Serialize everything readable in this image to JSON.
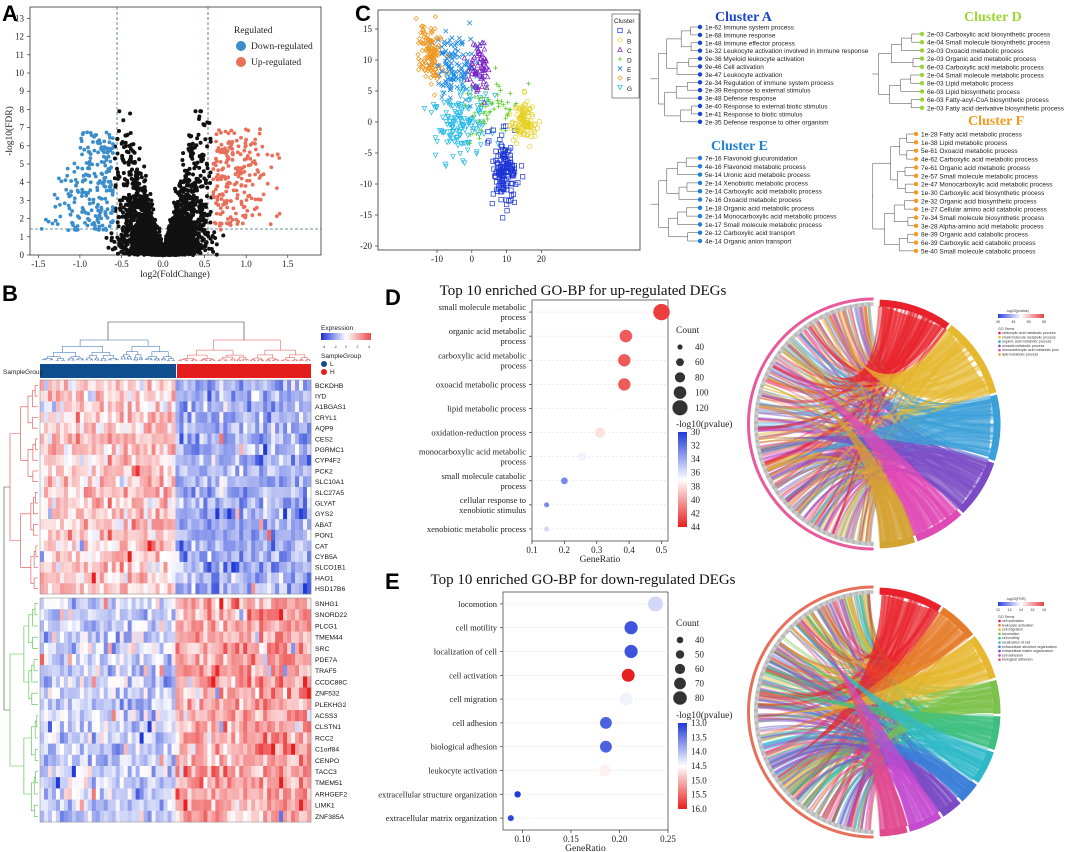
{
  "panels": {
    "a": "A",
    "b": "B",
    "c": "C",
    "d": "D",
    "e": "E"
  },
  "colors": {
    "down": "#3b8ec9",
    "up": "#e8705a",
    "ns": "#111111",
    "lowBlue": "#1f3ad8",
    "highRed": "#e81f1f"
  },
  "volcano": {
    "xlabel": "log2(FoldChange)",
    "ylabel": "-log10(FDR)",
    "xticks": [
      "-1.5",
      "-1.0",
      "-0.5",
      "0.0",
      "0.5",
      "1.0",
      "1.5"
    ],
    "yticks": [
      "0",
      "1",
      "2",
      "3",
      "4",
      "5",
      "6",
      "7",
      "8",
      "9",
      "10",
      "11",
      "12",
      "13"
    ],
    "legend_title": "Regulated",
    "legend_down": "Down-regulated",
    "legend_up": "Up-regulated"
  },
  "heatmap": {
    "expr_title": "Expression",
    "expr_ticks": [
      "-4",
      "-2",
      "0",
      "2",
      "4"
    ],
    "group_title": "SampleGroup",
    "group_l": "L",
    "group_h": "H",
    "row_label": "SampleGroup",
    "genes": [
      "BCKDHB",
      "IYD",
      "A1BGAS1",
      "CRYL1",
      "AQP9",
      "CES2",
      "PGRMC1",
      "CYP4F2",
      "PCK2",
      "SLC10A1",
      "SLC27A5",
      "GLYAT",
      "GYS2",
      "ABAT",
      "PON1",
      "CAT",
      "CYB5A",
      "SLCO1B1",
      "HAO1",
      "HSD17B6",
      "SNHG1",
      "SNORD22",
      "PLCG1",
      "TMEM44",
      "SRC",
      "PDE7A",
      "TRAF5",
      "CCDC88C",
      "ZNF532",
      "PLEKHG2",
      "ACSS3",
      "CLSTN1",
      "RCC2",
      "C1orf84",
      "CENPO",
      "TACC3",
      "TMEM51",
      "ARHGEF2",
      "LIMK1",
      "ZNF385A"
    ]
  },
  "tsne": {
    "xticks": [
      "-10",
      "0",
      "10",
      "20"
    ],
    "yticks": [
      "15",
      "10",
      "5",
      "0",
      "-5",
      "-10",
      "-15",
      "-20"
    ],
    "legend_title": "Cluster",
    "clusters": [
      {
        "name": "A",
        "color": "#1b34d6",
        "symbol": "□"
      },
      {
        "name": "B",
        "color": "#e6d020",
        "symbol": "○"
      },
      {
        "name": "C",
        "color": "#7b22c4",
        "symbol": "△"
      },
      {
        "name": "D",
        "color": "#5ccc2e",
        "symbol": "+"
      },
      {
        "name": "E",
        "color": "#1e88e5",
        "symbol": "×"
      },
      {
        "name": "F",
        "color": "#f0961e",
        "symbol": "◇"
      },
      {
        "name": "G",
        "color": "#22b8e8",
        "symbol": "▽"
      }
    ]
  },
  "trees": [
    {
      "title": "Cluster A",
      "color": "#1a44c9",
      "terms": [
        "1e-62 Immune system process",
        "1e-68 Immune response",
        "1e-48 Immune effector process",
        "1e-32 Leukocyte activation involved in immune response",
        "9e-36 Myeloid leukocyte activation",
        "9e-46 Cell activation",
        "3e-47 Leukocyte activation",
        "2e-34 Regulation of immune system process",
        "2e-39 Response to external stimulus",
        "3e-48 Defense response",
        "3e-40 Response to external biotic stimulus",
        "1e-41 Response to biotic stimulus",
        "2e-35 Defense response to other organism"
      ]
    },
    {
      "title": "Cluster D",
      "color": "#9ad633",
      "terms": [
        "2e-03 Carboxylic acid biosynthetic process",
        "4e-04 Small molecule biosynthetic process",
        "2e-03 Oxoacid metabolic process",
        "2e-03 Organic acid metabolic process",
        "6e-03 Carboxylic acid metabolic process",
        "2e-04 Small molecule metabolic process",
        "8e-03 Lipid metabolic process",
        "6e-03 Lipid biosynthetic process",
        "6e-03 Fatty-acyl-CoA biosynthetic process",
        "2e-03 Fatty acid derivative biosynthetic process"
      ]
    },
    {
      "title": "Cluster E",
      "color": "#1e7fd6",
      "terms": [
        "7e-16 Flavonoid glucuronidation",
        "4e-16 Flavonoid metabolic process",
        "5e-14 Uronic acid metabolic process",
        "2e-14 Xenobiotic metabolic process",
        "2e-14 Carboxylic acid metabolic process",
        "7e-16 Oxoacid metabolic process",
        "1e-18 Organic acid metabolic process",
        "2e-14 Monocarboxylic acid metabolic process",
        "1e-17 Small molecule metabolic process",
        "2e-12 Carboxylic acid transport",
        "4e-14 Organic anion transport"
      ]
    },
    {
      "title": "Cluster F",
      "color": "#f29b1e",
      "terms": [
        "1e-28 Fatty acid metabolic process",
        "1e-38 Lipid metabolic process",
        "5e-61 Oxoacid metabolic process",
        "4e-62 Carboxylic acid metabolic process",
        "7e-61 Organic acid metabolic process",
        "2e-57 Small molecule metabolic process",
        "2e-47 Monocarboxylic acid metabolic process",
        "1e-30 Carboxylic acid biosynthetic process",
        "2e-32 Organic acid biosynthetic process",
        "1e-27 Cellular amino acid catabolic process",
        "7e-34 Small molecule biosynthetic process",
        "3e-28 Alpha-amino acid metabolic process",
        "8e-39 Organic acid catabolic process",
        "6e-39 Carboxylic acid catabolic process",
        "5e-40 Small molecule catabolic process"
      ]
    }
  ],
  "chart_data": [
    {
      "type": "scatter",
      "title": "Top 10 enriched GO-BP for up-regulated DEGs",
      "xlabel": "GeneRatio",
      "xlim": [
        0.1,
        0.52
      ],
      "xticks": [
        "0.1",
        "0.2",
        "0.3",
        "0.4",
        "0.5"
      ],
      "terms": [
        "small molecule metabolic process",
        "organic acid metabolic process",
        "carboxylic acid metabolic process",
        "oxoacid metabolic process",
        "lipid metabolic process",
        "oxidation-reduction process",
        "monocarboxylic acid metabolic process",
        "small molecule catabolic process",
        "cellular response to xenobiotic stimulus",
        "xenobiotic metabolic process"
      ],
      "gene_ratio": [
        0.5,
        0.39,
        0.385,
        0.385,
        0.355,
        0.31,
        0.255,
        0.2,
        0.145,
        0.145
      ],
      "count": [
        130,
        100,
        98,
        98,
        90,
        80,
        65,
        52,
        38,
        38
      ],
      "neg_log10_pvalue": [
        44,
        43,
        43,
        43,
        37.5,
        38.5,
        37,
        33,
        33,
        36
      ],
      "size_legend_title": "Count",
      "size_legend": [
        "40",
        "60",
        "80",
        "100",
        "120"
      ],
      "color_legend_title": "-log10(pvalue)",
      "color_ticks": [
        "30",
        "32",
        "34",
        "36",
        "38",
        "40",
        "42",
        "44"
      ],
      "color_range": [
        30,
        45
      ]
    },
    {
      "type": "scatter",
      "title": "Top 10 enriched GO-BP for down-regulated DEGs",
      "xlabel": "GeneRatio",
      "xlim": [
        0.08,
        0.25
      ],
      "xticks": [
        "0.10",
        "0.15",
        "0.20",
        "0.25"
      ],
      "terms": [
        "locomotion",
        "cell motility",
        "localization of cell",
        "cell activation",
        "cell migration",
        "cell adhesion",
        "biological adhesion",
        "leukocyte activation",
        "extracellular structure organization",
        "extracellular matrix organization"
      ],
      "gene_ratio": [
        0.237,
        0.212,
        0.212,
        0.209,
        0.207,
        0.186,
        0.186,
        0.185,
        0.095,
        0.088
      ],
      "count": [
        88,
        78,
        78,
        77,
        76,
        70,
        70,
        68,
        38,
        36
      ],
      "neg_log10_pvalue": [
        14.2,
        13.2,
        13.2,
        16.0,
        14.4,
        13.3,
        13.3,
        14.6,
        13.0,
        13.1
      ],
      "size_legend_title": "Count",
      "size_legend": [
        "40",
        "50",
        "60",
        "70",
        "80"
      ],
      "color_legend_title": "-log10(pvalue)",
      "color_ticks": [
        "13.0",
        "13.5",
        "14.0",
        "14.5",
        "15.0",
        "15.5",
        "16.0"
      ],
      "color_range": [
        13.0,
        16.0
      ]
    }
  ],
  "chord_d": {
    "scale_title": "-log10(pvalue)",
    "scale_ticks": [
      "40",
      "45",
      "50",
      "55"
    ],
    "go_title": "GO Terms",
    "go_terms": [
      "carboxylic acid metabolic process",
      "small molecule metabolic process",
      "organic acid metabolic process",
      "oxoacid metabolic process",
      "monocarboxylic acid metabolic proc",
      "lipid metabolic process"
    ],
    "go_colors": [
      "#e8212b",
      "#e6b830",
      "#3b9fd8",
      "#7b4bc6",
      "#e04ab5",
      "#d4a232"
    ]
  },
  "chord_e": {
    "scale_title": "-log10(FDR)",
    "scale_ticks": [
      "12",
      "13",
      "14",
      "15",
      "16"
    ],
    "go_title": "GO Terms",
    "go_terms": [
      "cell activation",
      "leukocyte activation",
      "cell migration",
      "locomotion",
      "cell motility",
      "localization of cell",
      "extracellular structure organization",
      "extracellular matrix organization",
      "cell adhesion",
      "biological adhesion"
    ],
    "go_colors": [
      "#e8212b",
      "#e57c2a",
      "#e6b830",
      "#7cc24a",
      "#3fbf7f",
      "#2fb8c8",
      "#3b7fd8",
      "#7b4bc6",
      "#c44bd0",
      "#e04a8f"
    ]
  }
}
